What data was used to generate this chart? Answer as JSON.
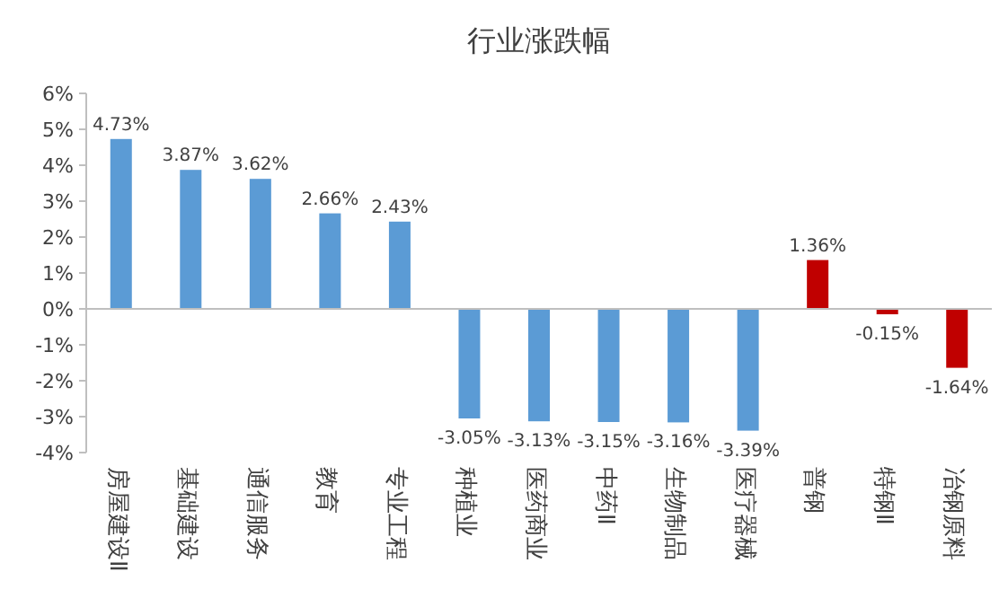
{
  "chart_data": {
    "type": "bar",
    "title": "行业涨跌幅",
    "categories": [
      "房屋建设Ⅱ",
      "基础建设",
      "通信服务",
      "教育",
      "专业工程",
      "种植业",
      "医药商业",
      "中药Ⅱ",
      "生物制品",
      "医疗器械",
      "普钢",
      "特钢Ⅱ",
      "冶钢原料"
    ],
    "values": [
      4.73,
      3.87,
      3.62,
      2.66,
      2.43,
      -3.05,
      -3.13,
      -3.15,
      -3.16,
      -3.39,
      1.36,
      -0.15,
      -1.64
    ],
    "value_labels": [
      "4.73%",
      "3.87%",
      "3.62%",
      "2.66%",
      "2.43%",
      "-3.05%",
      "-3.13%",
      "-3.15%",
      "-3.16%",
      "-3.39%",
      "1.36%",
      "-0.15%",
      "-1.64%"
    ],
    "colors": [
      "#5b9bd5",
      "#5b9bd5",
      "#5b9bd5",
      "#5b9bd5",
      "#5b9bd5",
      "#5b9bd5",
      "#5b9bd5",
      "#5b9bd5",
      "#5b9bd5",
      "#5b9bd5",
      "#c00000",
      "#c00000",
      "#c00000"
    ],
    "ylim": [
      -4,
      6
    ],
    "yticks": [
      {
        "value": -4,
        "label": "-4%"
      },
      {
        "value": -3,
        "label": "-3%"
      },
      {
        "value": -2,
        "label": "-2%"
      },
      {
        "value": -1,
        "label": "-1%"
      },
      {
        "value": 0,
        "label": "0%"
      },
      {
        "value": 1,
        "label": "1%"
      },
      {
        "value": 2,
        "label": "2%"
      },
      {
        "value": 3,
        "label": "3%"
      },
      {
        "value": 4,
        "label": "4%"
      },
      {
        "value": 5,
        "label": "5%"
      },
      {
        "value": 6,
        "label": "6%"
      }
    ]
  }
}
